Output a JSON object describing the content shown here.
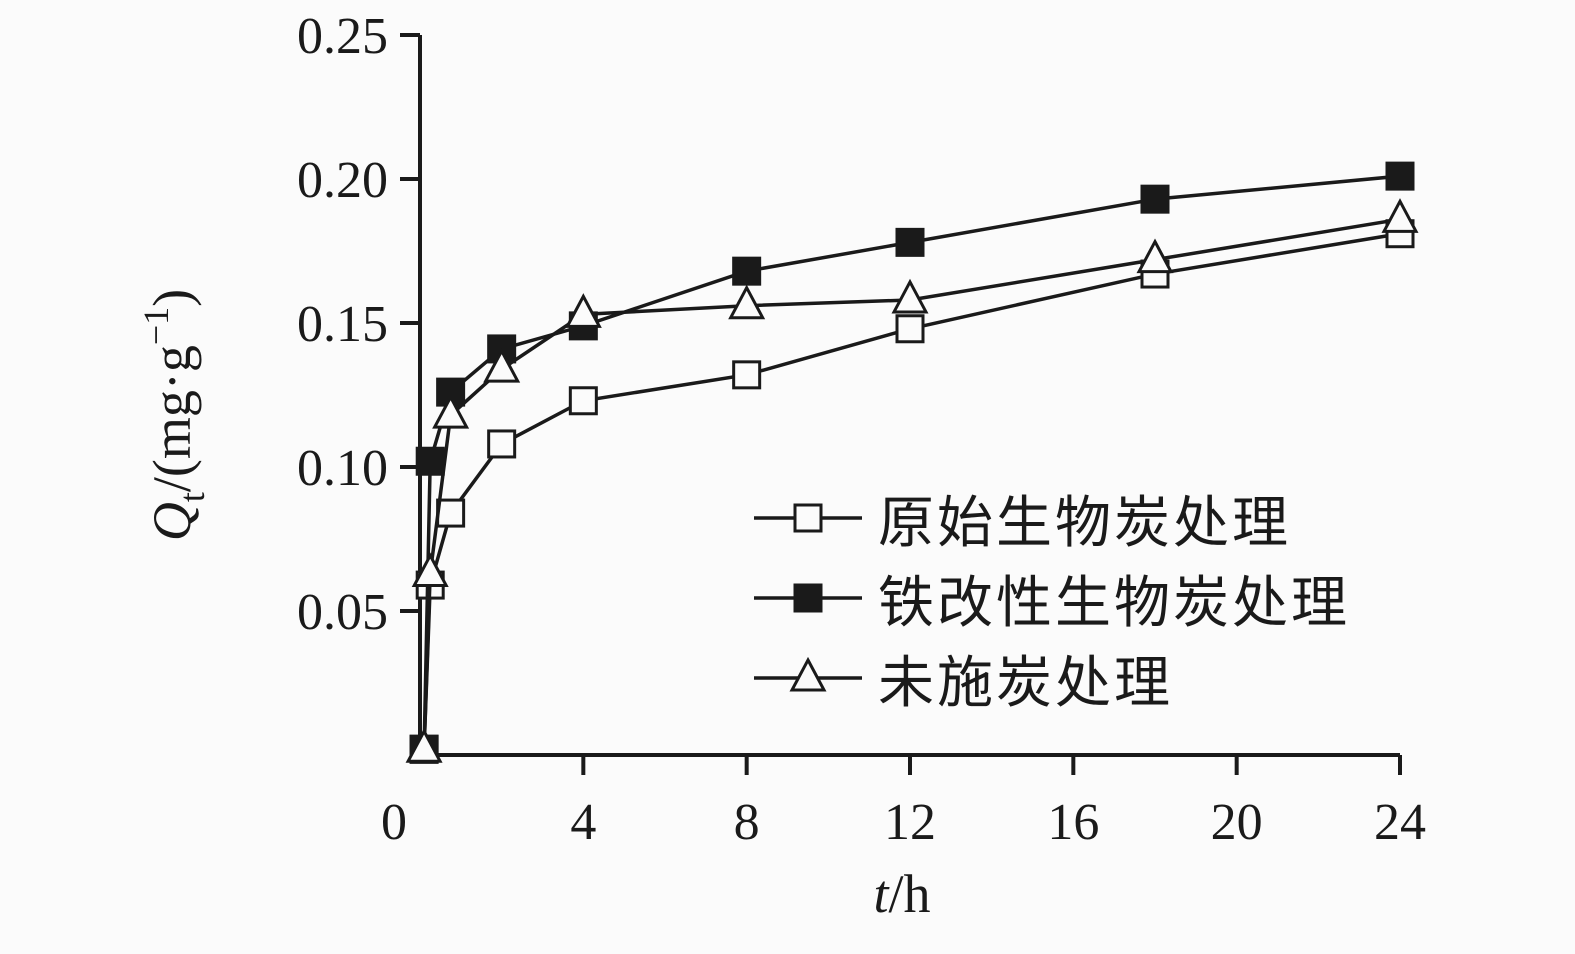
{
  "chart_data": {
    "type": "line",
    "title": "",
    "xlabel_parts": {
      "var": "t",
      "unit": "/h"
    },
    "ylabel_parts": {
      "var": "Q",
      "sub": "t",
      "mid": "/(mg·g",
      "sup": "−1",
      "end": ")"
    },
    "xlim": [
      0,
      24
    ],
    "ylim": [
      0,
      0.25
    ],
    "grid": false,
    "legend_position": "inside-right-middle",
    "x_ticks": [
      0,
      4,
      8,
      12,
      16,
      20,
      24
    ],
    "x_tick_labels": [
      "0",
      "4",
      "8",
      "12",
      "16",
      "20",
      "24"
    ],
    "y_tick_values": [
      0.05,
      0.1,
      0.15,
      0.2,
      0.25
    ],
    "y_ticks": [
      "0.05",
      "0.10",
      "0.15",
      "0.20",
      "0.25"
    ],
    "x": [
      0.1,
      0.25,
      0.75,
      2,
      4,
      8,
      12,
      18,
      24
    ],
    "series": [
      {
        "id": "original-biochar",
        "name": "原始生物炭处理",
        "marker": "square-open",
        "values": [
          0.002,
          0.059,
          0.084,
          0.108,
          0.123,
          0.132,
          0.148,
          0.167,
          0.181
        ]
      },
      {
        "id": "iron-modified-biochar",
        "name": "铁改性生物炭处理",
        "marker": "square-filled",
        "values": [
          0.002,
          0.102,
          0.126,
          0.141,
          0.149,
          0.168,
          0.178,
          0.193,
          0.201
        ]
      },
      {
        "id": "no-biochar",
        "name": "未施炭处理",
        "marker": "triangle-open",
        "values": [
          0.002,
          0.063,
          0.118,
          0.134,
          0.153,
          0.156,
          0.158,
          0.172,
          0.186
        ]
      }
    ],
    "line_color": "#1a1a1a",
    "background": "#fbfbfb"
  }
}
